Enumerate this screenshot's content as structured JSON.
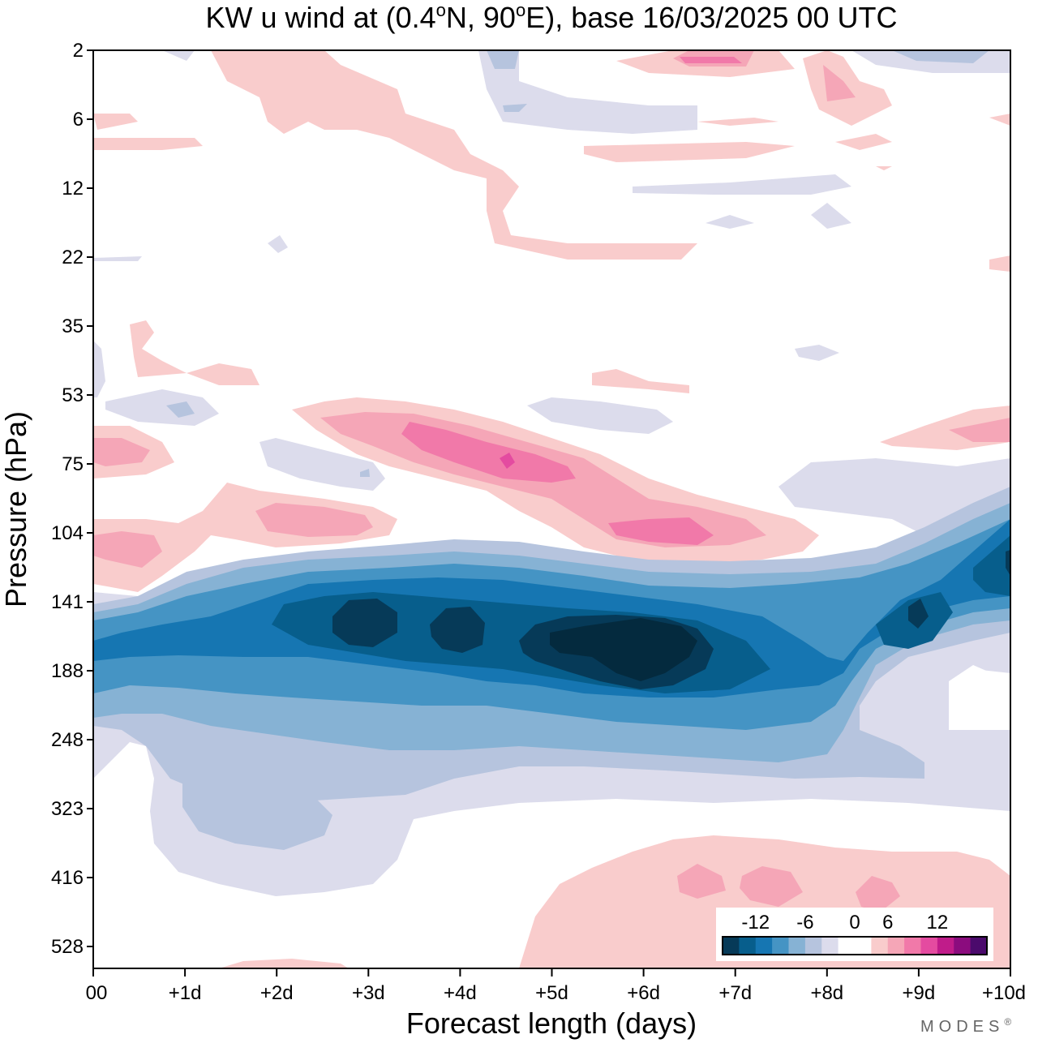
{
  "chart_data": {
    "type": "heatmap",
    "title_main": "KW u wind at (0.4",
    "title_deg": "o",
    "title_mid": "N, 90",
    "title_deg2": "o",
    "title_end": "E),  base 16/03/2025  00 UTC",
    "xlabel": "Forecast length (days)",
    "ylabel": "Pressure (hPa)",
    "x_ticks": [
      "00",
      "+1d",
      "+2d",
      "+3d",
      "+4d",
      "+5d",
      "+6d",
      "+7d",
      "+8d",
      "+9d",
      "+10d"
    ],
    "x_range_days": [
      0,
      10
    ],
    "y_ticks": [
      "2",
      "6",
      "12",
      "22",
      "35",
      "53",
      "75",
      "104",
      "141",
      "188",
      "248",
      "323",
      "416",
      "528"
    ],
    "y_range_hPa": [
      2,
      528
    ],
    "colorbar": {
      "labels": [
        "-12",
        "-6",
        "0",
        "6",
        "12"
      ],
      "label_values": [
        -12,
        -6,
        0,
        6,
        12
      ],
      "levels": [
        -16,
        -14,
        -12,
        -10,
        -8,
        -6,
        -4,
        -2,
        2,
        4,
        6,
        8,
        10,
        12,
        14,
        16
      ],
      "colors": [
        "#063a58",
        "#075e8c",
        "#1676b2",
        "#4594c4",
        "#86b2d4",
        "#b6c4de",
        "#dcdcec",
        "#ffffff",
        "#ffffff",
        "#f9cccc",
        "#f5a6b7",
        "#f179a9",
        "#e44ba0",
        "#c01c8a",
        "#8b0c7e",
        "#4b0a6c"
      ],
      "placement": "bottom-right"
    },
    "features": [
      {
        "kind": "jet_easterly",
        "day_range": [
          0,
          10
        ],
        "pressure_range_hPa": [
          104,
          290
        ],
        "min_value": -16,
        "core_day": 6,
        "core_pressure_hPa": 160
      },
      {
        "kind": "westerly",
        "day_range": [
          2.3,
          8.5
        ],
        "pressure_range_hPa": [
          55,
          120
        ],
        "max_value": 10,
        "core_day": 4.5,
        "core_pressure_hPa": 75
      },
      {
        "kind": "westerly",
        "day_range": [
          5,
          10
        ],
        "pressure_range_hPa": [
          360,
          528
        ],
        "max_value": 6
      }
    ],
    "brand": "MODES",
    "brand_mark": "®"
  }
}
